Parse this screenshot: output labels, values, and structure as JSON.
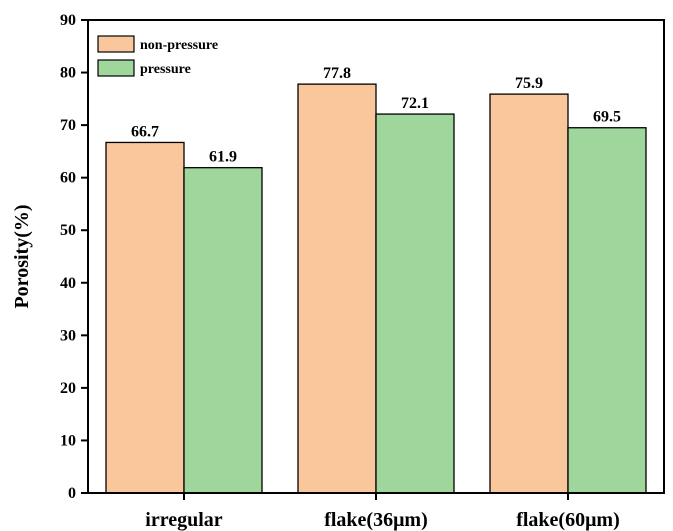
{
  "chart_data": {
    "type": "bar",
    "title": "",
    "xlabel": "",
    "ylabel": "Porosity(%)",
    "categories": [
      "irregular",
      "flake(36μm)",
      "flake(60μm)"
    ],
    "series": [
      {
        "name": "non-pressure",
        "color": "#f9c79b",
        "values": [
          66.7,
          77.8,
          75.9
        ],
        "labels": [
          "66.7",
          "77.8",
          "75.9"
        ]
      },
      {
        "name": "pressure",
        "color": "#9fd69b",
        "values": [
          61.9,
          72.1,
          69.5
        ],
        "labels": [
          "61.9",
          "72.1",
          "69.5"
        ]
      }
    ],
    "ylim": [
      0,
      90
    ],
    "yticks": [
      "0",
      "10",
      "20",
      "30",
      "40",
      "50",
      "60",
      "70",
      "80",
      "90"
    ],
    "grid": false,
    "legend_position": "top-left"
  }
}
